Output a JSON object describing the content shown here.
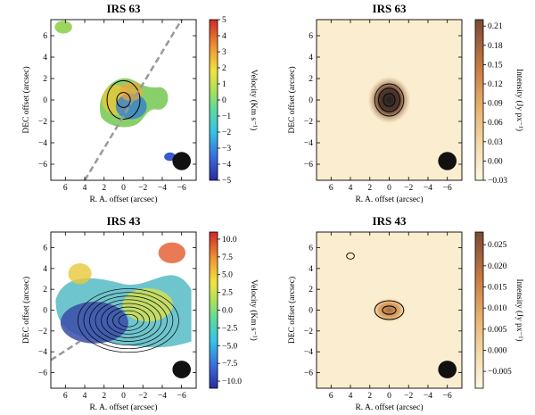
{
  "chart_data": [
    {
      "type": "heatmap",
      "title": "IRS 63",
      "xlabel": "R. A. offset (arcsec)",
      "ylabel": "DEC offset (arcsec)",
      "colorbar_label": "Velocity (Km s⁻¹)",
      "xlim": [
        7.5,
        -7.5
      ],
      "ylim": [
        -7.5,
        7.5
      ],
      "x_ticks": [
        "-6",
        "-4",
        "-2",
        "0",
        "2",
        "4",
        "6"
      ],
      "y_ticks": [
        "-6",
        "-4",
        "-2",
        "0",
        "2",
        "4",
        "6"
      ],
      "colorbar_range": [
        -5,
        5
      ],
      "colorbar_ticks": [
        "5",
        "4",
        "3",
        "2",
        "1",
        "0",
        "-1",
        "-2",
        "-3",
        "-4",
        "-5"
      ],
      "colormap": "rainbow (blue→cyan→green→yellow→red)",
      "features": [
        "velocity field with contours centered near (0,0)",
        "dashed line along position angle",
        "beam ellipse at (-6,-5.6)"
      ]
    },
    {
      "type": "heatmap",
      "title": "IRS 63",
      "xlabel": "R. A. offset (arcsec)",
      "ylabel": "DEC offset (arcsec)",
      "colorbar_label": "Intensity (Jy px⁻¹)",
      "xlim": [
        7.5,
        -7.5
      ],
      "ylim": [
        -7.5,
        7.5
      ],
      "x_ticks": [
        "-6",
        "-4",
        "-2",
        "0",
        "2",
        "4",
        "6"
      ],
      "y_ticks": [
        "-6",
        "-4",
        "-2",
        "0",
        "2",
        "4",
        "6"
      ],
      "colorbar_range": [
        -0.03,
        0.22
      ],
      "colorbar_ticks": [
        "0.21",
        "0.18",
        "0.15",
        "0.12",
        "0.09",
        "0.06",
        "0.03",
        "0.00",
        "-0.03"
      ],
      "colormap": "orange-brown",
      "features": [
        "compact bright source at (0,0)",
        "beam ellipse at (-6,-5.8)"
      ]
    },
    {
      "type": "heatmap",
      "title": "IRS 43",
      "xlabel": "R. A. offset (arcsec)",
      "ylabel": "DEC offset (arcsec)",
      "colorbar_label": "Velocity (Km s⁻¹)",
      "xlim": [
        7.5,
        -7.5
      ],
      "ylim": [
        -7.5,
        7.5
      ],
      "x_ticks": [
        "-6",
        "-4",
        "-2",
        "0",
        "2",
        "4",
        "6"
      ],
      "y_ticks": [
        "-6",
        "-4",
        "-2",
        "0",
        "2",
        "4",
        "6"
      ],
      "colorbar_range": [
        -11,
        11
      ],
      "colorbar_ticks": [
        "10.0",
        "7.5",
        "5.0",
        "2.5",
        "0.0",
        "-2.5",
        "-5.0",
        "-7.5",
        "-10.0"
      ],
      "colormap": "rainbow (blue→cyan→green→yellow→red)",
      "features": [
        "extended velocity field with many contours near (0,-1)",
        "dashed line",
        "beam ellipse at (-6,-5.4)"
      ]
    },
    {
      "type": "heatmap",
      "title": "IRS 43",
      "xlabel": "R. A. offset (arcsec)",
      "ylabel": "DEC offset (arcsec)",
      "colorbar_label": "Intensity (Jy px⁻¹)",
      "xlim": [
        7.5,
        -7.5
      ],
      "ylim": [
        -7.5,
        7.5
      ],
      "x_ticks": [
        "-6",
        "-4",
        "-2",
        "0",
        "2",
        "4",
        "6"
      ],
      "y_ticks": [
        "-6",
        "-4",
        "-2",
        "0",
        "2",
        "4",
        "6"
      ],
      "colorbar_range": [
        -0.009,
        0.028
      ],
      "colorbar_ticks": [
        "0.025",
        "0.020",
        "0.015",
        "0.010",
        "0.005",
        "0.000",
        "-0.005"
      ],
      "colormap": "orange-brown",
      "features": [
        "faint source at (0,0)",
        "weak source at (4,5.2)",
        "beam ellipse at (-6,-5.8)"
      ]
    }
  ]
}
